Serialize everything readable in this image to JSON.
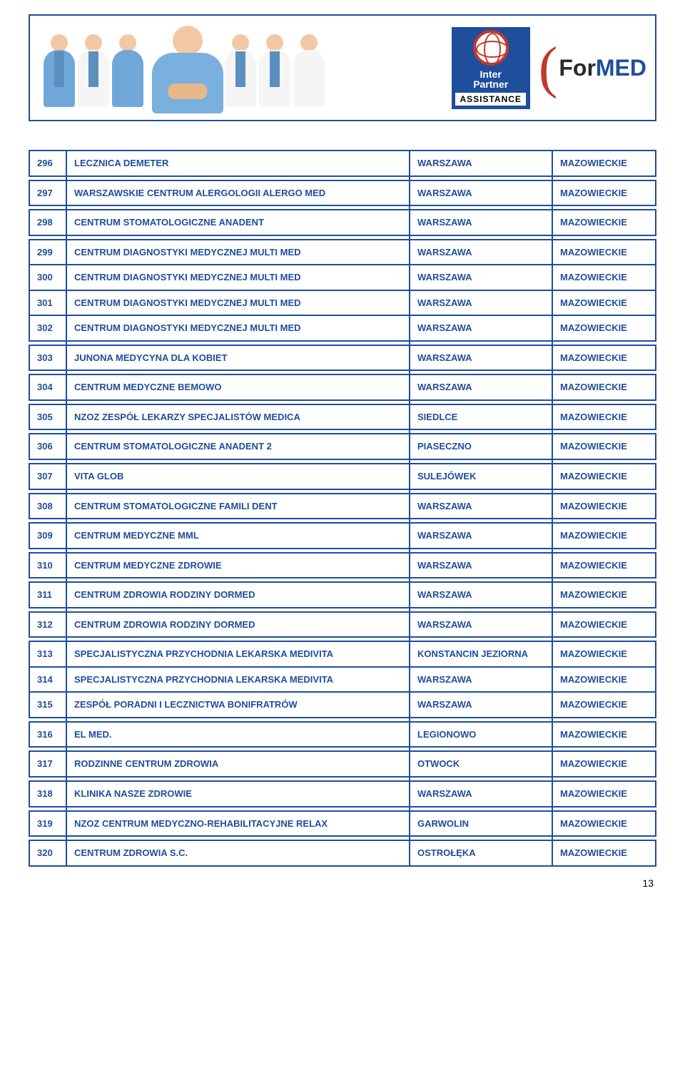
{
  "colors": {
    "border": "#1e4e9c",
    "text": "#1e4e9c",
    "logo_bg": "#1e4e9c",
    "globe_border": "#c0392b",
    "paren": "#c0392b",
    "formed_for": "#2a2a2a",
    "formed_med": "#1e4e9c",
    "skin": "#f3c9a5",
    "scrub_blue": "#6fa8d8",
    "coat_white": "#f5f5f5",
    "coat_inner": "#5a8fbf",
    "center_scrub": "#79b0de",
    "arms_skin": "#e8b88a"
  },
  "header": {
    "logo": {
      "line1": "Inter",
      "line2": "Partner",
      "assist": "ASSISTANCE"
    },
    "formed": {
      "part1": "For",
      "part2": "MED"
    }
  },
  "table": {
    "rows": [
      {
        "num": "296",
        "name": "LECZNICA DEMETER",
        "city": "WARSZAWA",
        "region": "MAZOWIECKIE"
      },
      {
        "num": "297",
        "name": "WARSZAWSKIE CENTRUM ALERGOLOGII ALERGO MED",
        "city": "WARSZAWA",
        "region": "MAZOWIECKIE"
      },
      {
        "num": "298",
        "name": "CENTRUM STOMATOLOGICZNE ANADENT",
        "city": "WARSZAWA",
        "region": "MAZOWIECKIE"
      },
      {
        "num": "299",
        "name": "CENTRUM DIAGNOSTYKI MEDYCZNEJ MULTI MED",
        "city": "WARSZAWA",
        "region": "MAZOWIECKIE"
      },
      {
        "num": "300",
        "name": "CENTRUM DIAGNOSTYKI MEDYCZNEJ MULTI MED",
        "city": "WARSZAWA",
        "region": "MAZOWIECKIE"
      },
      {
        "num": "301",
        "name": "CENTRUM DIAGNOSTYKI MEDYCZNEJ MULTI MED",
        "city": "WARSZAWA",
        "region": "MAZOWIECKIE"
      },
      {
        "num": "302",
        "name": "CENTRUM DIAGNOSTYKI MEDYCZNEJ MULTI MED",
        "city": "WARSZAWA",
        "region": "MAZOWIECKIE"
      },
      {
        "num": "303",
        "name": "JUNONA MEDYCYNA DLA KOBIET",
        "city": "WARSZAWA",
        "region": "MAZOWIECKIE"
      },
      {
        "num": "304",
        "name": "CENTRUM MEDYCZNE BEMOWO",
        "city": "WARSZAWA",
        "region": "MAZOWIECKIE"
      },
      {
        "num": "305",
        "name": "NZOZ ZESPÓŁ LEKARZY SPECJALISTÓW MEDICA",
        "city": "SIEDLCE",
        "region": "MAZOWIECKIE"
      },
      {
        "num": "306",
        "name": "CENTRUM STOMATOLOGICZNE ANADENT 2",
        "city": "PIASECZNO",
        "region": "MAZOWIECKIE"
      },
      {
        "num": "307",
        "name": "VITA GLOB",
        "city": "SULEJÓWEK",
        "region": "MAZOWIECKIE"
      },
      {
        "num": "308",
        "name": "CENTRUM STOMATOLOGICZNE FAMILI DENT",
        "city": "WARSZAWA",
        "region": "MAZOWIECKIE"
      },
      {
        "num": "309",
        "name": "CENTRUM MEDYCZNE MML",
        "city": "WARSZAWA",
        "region": "MAZOWIECKIE"
      },
      {
        "num": "310",
        "name": "CENTRUM MEDYCZNE ZDROWIE",
        "city": "WARSZAWA",
        "region": "MAZOWIECKIE"
      },
      {
        "num": "311",
        "name": "CENTRUM ZDROWIA RODZINY DORMED",
        "city": "WARSZAWA",
        "region": "MAZOWIECKIE"
      },
      {
        "num": "312",
        "name": "CENTRUM ZDROWIA RODZINY DORMED",
        "city": "WARSZAWA",
        "region": "MAZOWIECKIE"
      },
      {
        "num": "313",
        "name": "SPECJALISTYCZNA PRZYCHODNIA LEKARSKA MEDIVITA",
        "city": "KONSTANCIN JEZIORNA",
        "region": "MAZOWIECKIE"
      },
      {
        "num": "314",
        "name": "SPECJALISTYCZNA PRZYCHODNIA LEKARSKA MEDIVITA",
        "city": "WARSZAWA",
        "region": "MAZOWIECKIE"
      },
      {
        "num": "315",
        "name": "ZESPÓŁ PORADNI I LECZNICTWA BONIFRATRÓW",
        "city": "WARSZAWA",
        "region": "MAZOWIECKIE"
      },
      {
        "num": "316",
        "name": "EL MED.",
        "city": "LEGIONOWO",
        "region": "MAZOWIECKIE"
      },
      {
        "num": "317",
        "name": "RODZINNE CENTRUM ZDROWIA",
        "city": "OTWOCK",
        "region": "MAZOWIECKIE"
      },
      {
        "num": "318",
        "name": "KLINIKA NASZE ZDROWIE",
        "city": "WARSZAWA",
        "region": "MAZOWIECKIE"
      },
      {
        "num": "319",
        "name": "NZOZ CENTRUM MEDYCZNO-REHABILITACYJNE RELAX",
        "city": "GARWOLIN",
        "region": "MAZOWIECKIE"
      },
      {
        "num": "320",
        "name": "CENTRUM ZDROWIA S.C.",
        "city": "OSTROŁĘKA",
        "region": "MAZOWIECKIE"
      }
    ],
    "grouped_nums": [
      "299",
      "300",
      "301",
      "302",
      "313",
      "314",
      "315"
    ]
  },
  "page_number": "13"
}
